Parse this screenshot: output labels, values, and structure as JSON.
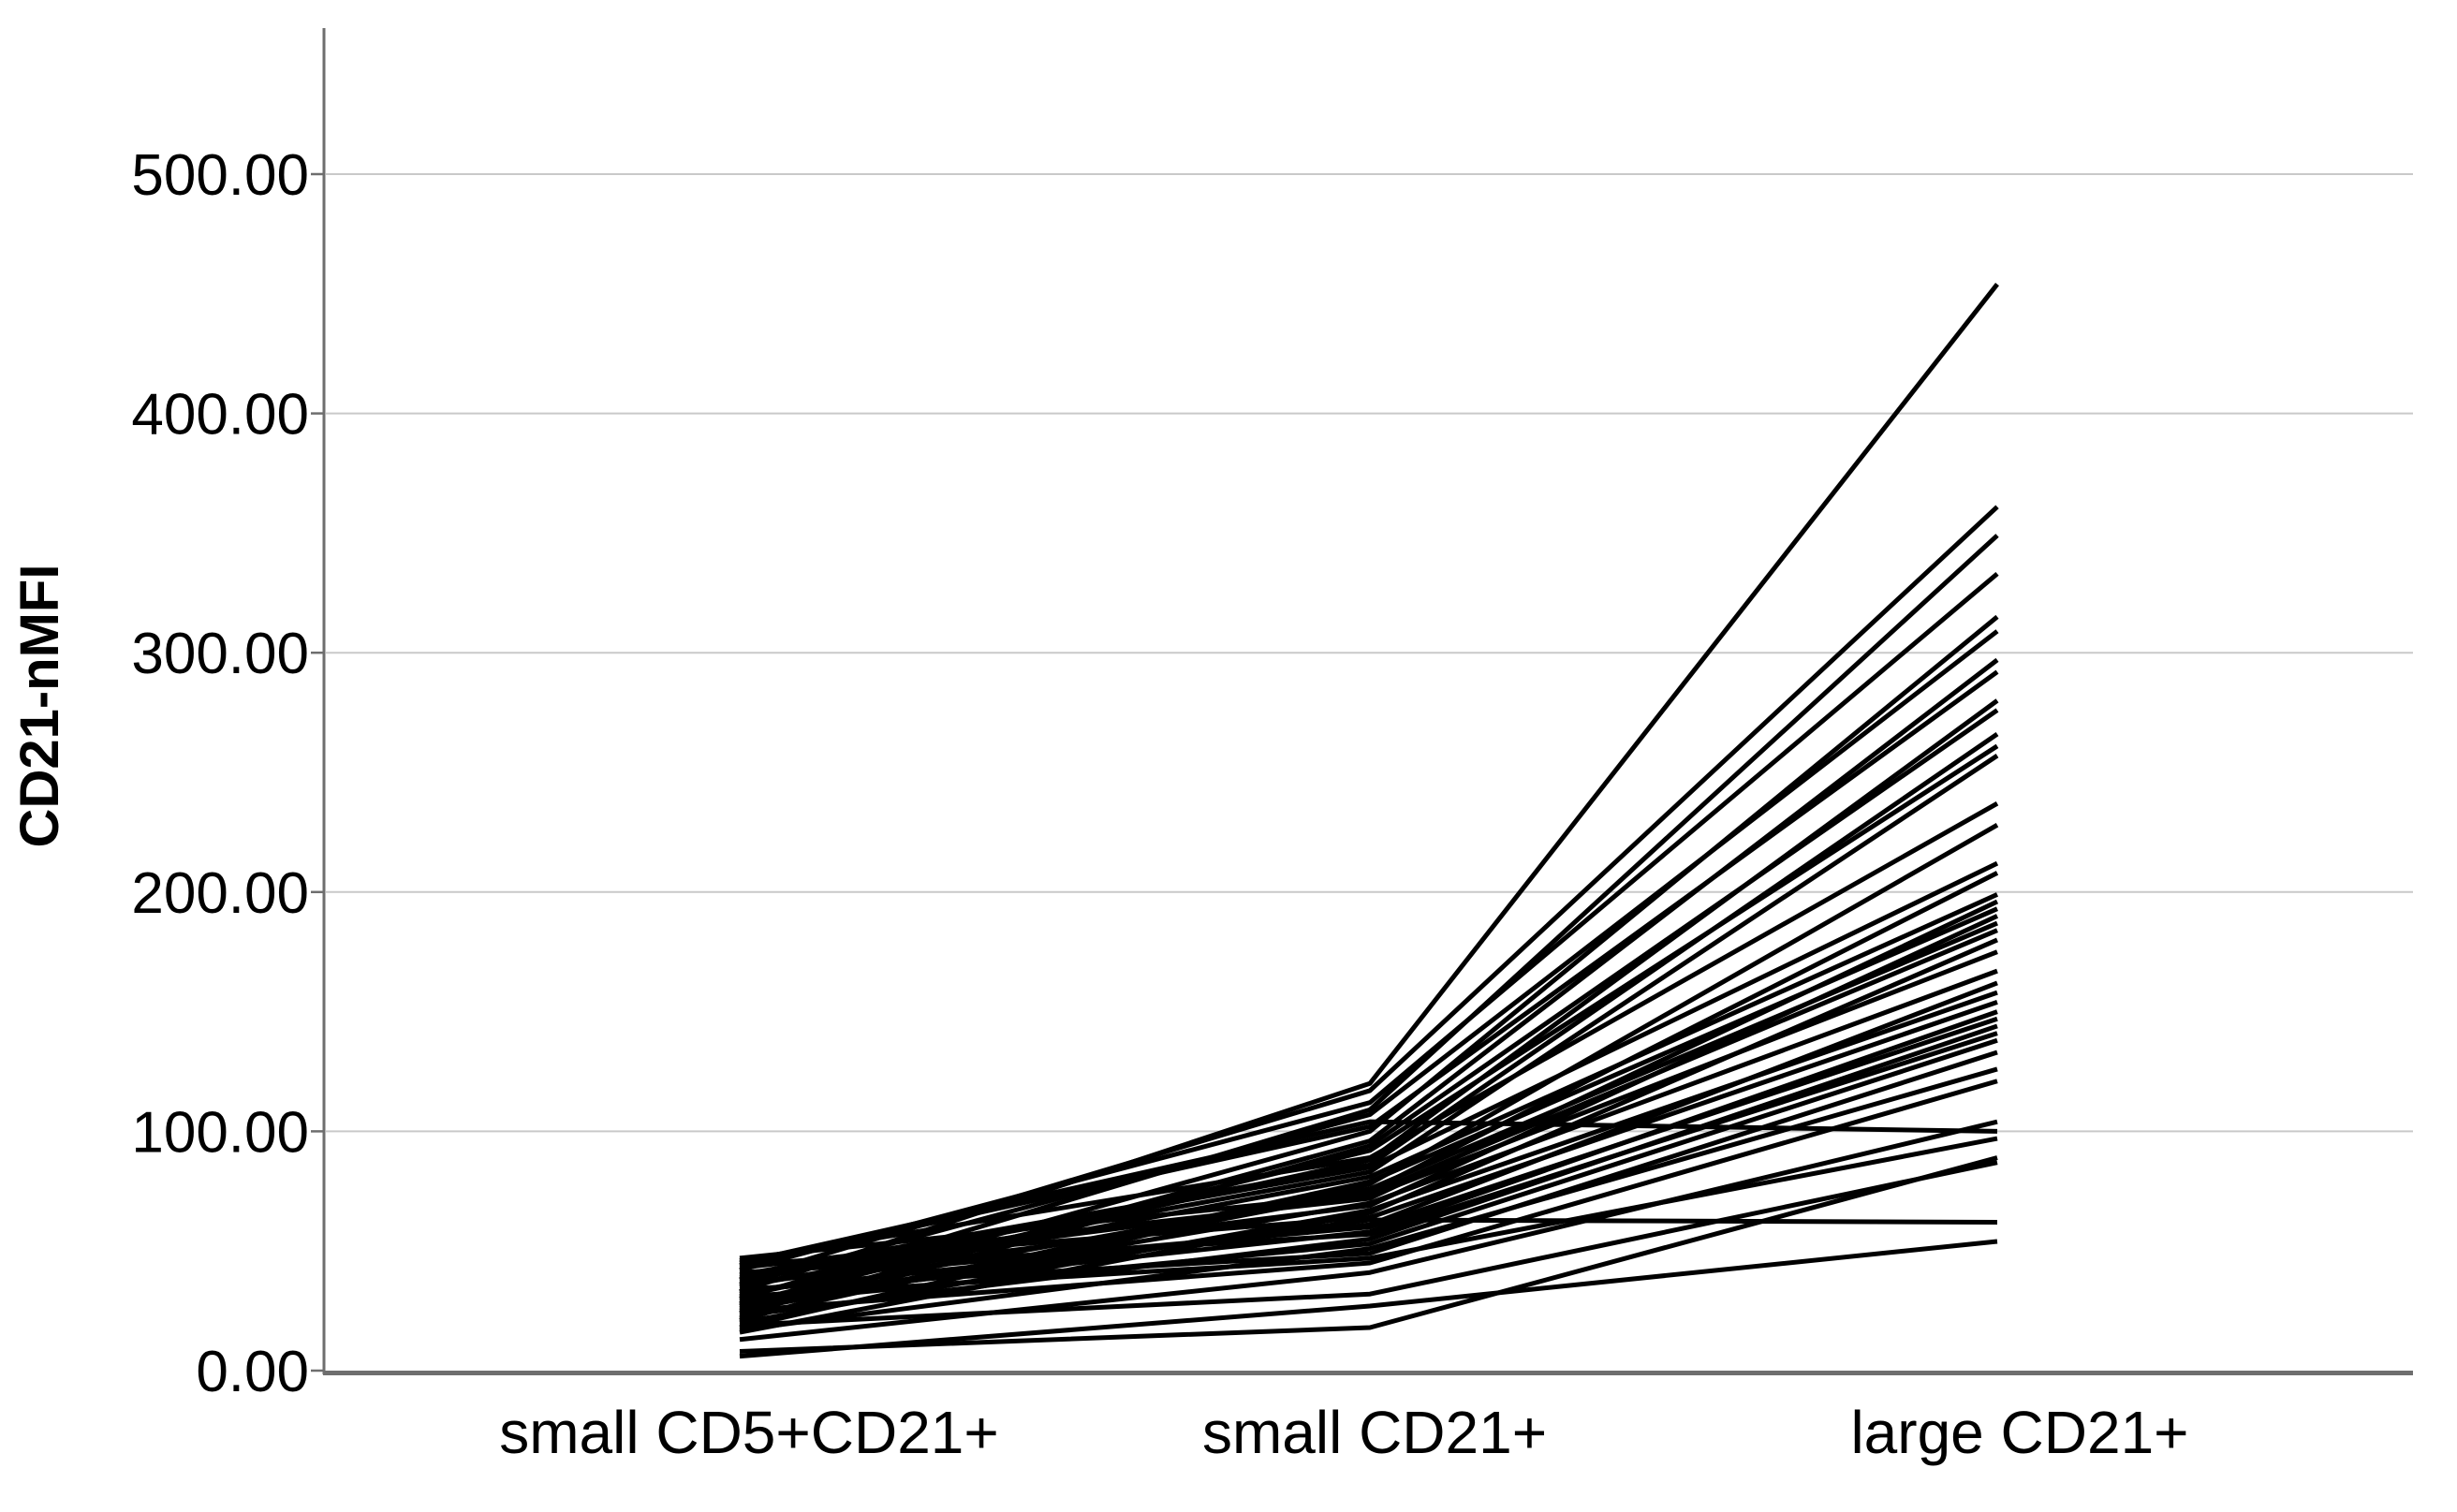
{
  "chart_data": {
    "type": "line",
    "subtype": "profile-spaghetti-plot",
    "title": "",
    "ylabel": "CD21-nMFI",
    "xlabel": "",
    "categories": [
      "small CD5+CD21+",
      "small CD21+",
      "large CD21+"
    ],
    "yticks": [
      {
        "value": 0,
        "label": "0.00"
      },
      {
        "value": 100,
        "label": "100.00"
      },
      {
        "value": 200,
        "label": "200.00"
      },
      {
        "value": 300,
        "label": "300.00"
      },
      {
        "value": 400,
        "label": "400.00"
      },
      {
        "value": 500,
        "label": "500.00"
      }
    ],
    "ylim": [
      0,
      560
    ],
    "grid": "horizontal-only",
    "legend": "none",
    "series": [
      {
        "values": [
          33,
          120,
          454
        ]
      },
      {
        "values": [
          38,
          117,
          361
        ]
      },
      {
        "values": [
          30,
          109,
          349
        ]
      },
      {
        "values": [
          42,
          112,
          333
        ]
      },
      {
        "values": [
          27,
          100,
          315
        ]
      },
      {
        "values": [
          36,
          107,
          309
        ]
      },
      {
        "values": [
          24,
          96,
          297
        ]
      },
      {
        "values": [
          44,
          102,
          292
        ]
      },
      {
        "values": [
          31,
          88,
          280
        ]
      },
      {
        "values": [
          21,
          94,
          276
        ]
      },
      {
        "values": [
          40,
          86,
          266
        ]
      },
      {
        "values": [
          28,
          92,
          261
        ]
      },
      {
        "values": [
          35,
          83,
          257
        ]
      },
      {
        "values": [
          46,
          89,
          237
        ]
      },
      {
        "values": [
          18,
          78,
          228
        ]
      },
      {
        "values": [
          38,
          85,
          212
        ]
      },
      {
        "values": [
          25,
          75,
          208
        ]
      },
      {
        "values": [
          32,
          81,
          199
        ]
      },
      {
        "values": [
          43,
          72,
          196
        ]
      },
      {
        "values": [
          22,
          79,
          193
        ]
      },
      {
        "values": [
          36,
          69,
          190
        ]
      },
      {
        "values": [
          29,
          76,
          187
        ]
      },
      {
        "values": [
          47,
          74,
          184
        ]
      },
      {
        "values": [
          16,
          66,
          180
        ]
      },
      {
        "values": [
          39,
          73,
          175
        ]
      },
      {
        "values": [
          26,
          70,
          167
        ]
      },
      {
        "values": [
          33,
          61,
          162
        ]
      },
      {
        "values": [
          20,
          67,
          158
        ]
      },
      {
        "values": [
          44,
          64,
          154
        ]
      },
      {
        "values": [
          30,
          58,
          150
        ]
      },
      {
        "values": [
          37,
          60,
          147
        ]
      },
      {
        "values": [
          23,
          55,
          144
        ]
      },
      {
        "values": [
          41,
          57,
          141
        ]
      },
      {
        "values": [
          28,
          53,
          138
        ]
      },
      {
        "values": [
          34,
          49,
          133
        ]
      },
      {
        "values": [
          17,
          51,
          126
        ]
      },
      {
        "values": [
          25,
          45,
          121
        ]
      },
      {
        "values": [
          13,
          41,
          104
        ]
      },
      {
        "values": [
          45,
          104,
          100
        ]
      },
      {
        "values": [
          31,
          47,
          97
        ]
      },
      {
        "values": [
          8,
          18,
          89
        ]
      },
      {
        "values": [
          19,
          32,
          87
        ]
      },
      {
        "values": [
          28,
          63,
          62
        ]
      },
      {
        "values": [
          6,
          27,
          54
        ]
      }
    ],
    "styles": {
      "line_color": "#000000",
      "line_width": 5,
      "grid_color": "#c9c9c9",
      "axis_color": "#6e6e6e",
      "text_color": "#000000",
      "background": "#ffffff"
    }
  }
}
